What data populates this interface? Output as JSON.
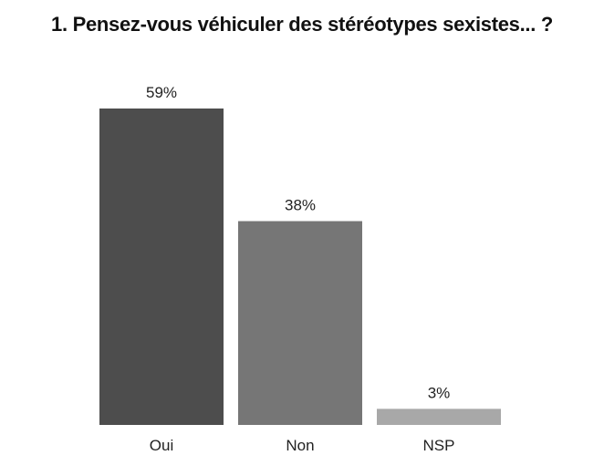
{
  "chart_data": {
    "type": "bar",
    "title": "1. Pensez-vous véhiculer des stéréotypes sexistes... ?",
    "xlabel": "",
    "ylabel": "",
    "categories": [
      "Oui",
      "Non",
      "NSP"
    ],
    "values": [
      59,
      38,
      3
    ],
    "value_labels": [
      "59%",
      "38%",
      "3%"
    ],
    "colors": [
      "#4d4d4d",
      "#767676",
      "#a8a8a8"
    ],
    "ylim": [
      0,
      59
    ],
    "grid": false,
    "legend": "none"
  }
}
